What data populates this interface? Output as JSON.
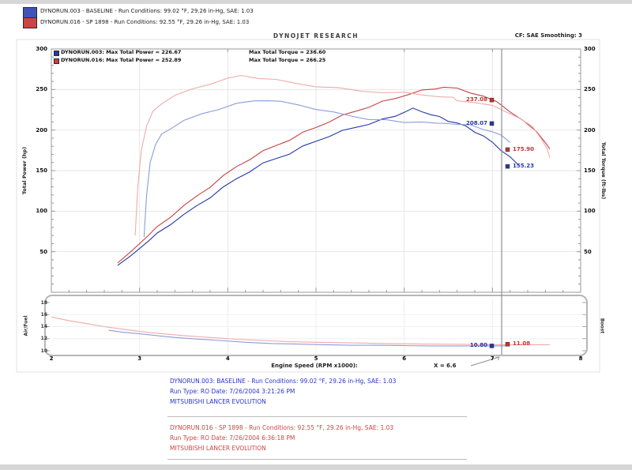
{
  "page": {
    "title": "DYNOJET RESEARCH",
    "cf_smoothing": "CF: SAE  Smoothing: 3",
    "header_legend": {
      "run1": {
        "label": "DYNORUN.003 - BASELINE  -  Run Conditions: 99.02 °F, 29.26 in-Hg, SAE: 1.03",
        "swatch_color": "#4054b8"
      },
      "run2": {
        "label": "DYNORUN.016 - SP 1898  -  Run Conditions: 92.55 °F, 29.26 in-Hg, SAE: 1.03",
        "swatch_color": "#cc4444"
      }
    }
  },
  "colors": {
    "run1_power": "#2438a8",
    "run1_torque": "#8c9cdb",
    "run2_power": "#c64242",
    "run2_torque": "#efaaaa",
    "footer_blue": "#2a35c8",
    "footer_red": "#d04343",
    "cursor": "#8f8f8f"
  },
  "chart_data": {
    "type": "line",
    "title": "DYNOJET RESEARCH",
    "inplot_legend": {
      "row1": {
        "swatch": "#2438a8",
        "power": "DYNORUN.003: Max Total Power = 226.67",
        "torque": "Max Total Torque = 236.60"
      },
      "row2": {
        "swatch": "#c64242",
        "power": "DYNORUN.016: Max Total Power = 252.89",
        "torque": "Max Total Torque = 266.25"
      }
    },
    "x_axis": {
      "label": "Engine Speed (RPM x1000):",
      "ticks": [
        2,
        3,
        4,
        5,
        6,
        7,
        8
      ],
      "range": [
        2,
        8
      ]
    },
    "cursor": {
      "x_label": "X = 6.6"
    },
    "main_panel": {
      "left_axis": {
        "label": "Total Power (hp)",
        "ticks": [
          50,
          100,
          150,
          200,
          250,
          300
        ],
        "range": [
          0,
          300
        ]
      },
      "right_axis": {
        "label": "Total Torque (ft-lbs)",
        "ticks": [
          50,
          100,
          150,
          200,
          250,
          300
        ],
        "range": [
          0,
          300
        ]
      },
      "grid": true,
      "series": [
        {
          "name": "run1-total-power",
          "legend": "DYNORUN.003 Total Power",
          "color": "#2438a8",
          "points": [
            [
              2.75,
              33
            ],
            [
              2.9,
              45
            ],
            [
              3.0,
              54
            ],
            [
              3.1,
              63
            ],
            [
              3.2,
              72
            ],
            [
              3.35,
              85
            ],
            [
              3.5,
              96
            ],
            [
              3.65,
              107
            ],
            [
              3.8,
              118
            ],
            [
              3.95,
              129
            ],
            [
              4.1,
              139
            ],
            [
              4.25,
              149
            ],
            [
              4.4,
              158
            ],
            [
              4.55,
              165
            ],
            [
              4.7,
              172
            ],
            [
              4.85,
              180
            ],
            [
              5.0,
              187
            ],
            [
              5.15,
              193
            ],
            [
              5.3,
              198
            ],
            [
              5.45,
              203
            ],
            [
              5.6,
              207
            ],
            [
              5.75,
              212
            ],
            [
              5.9,
              218
            ],
            [
              6.0,
              223
            ],
            [
              6.1,
              226.7
            ],
            [
              6.2,
              224
            ],
            [
              6.3,
              219
            ],
            [
              6.4,
              215
            ],
            [
              6.5,
              211
            ],
            [
              6.6,
              208
            ],
            [
              6.7,
              204
            ],
            [
              6.8,
              199
            ],
            [
              6.9,
              193
            ],
            [
              7.0,
              185
            ],
            [
              7.1,
              176
            ],
            [
              7.2,
              166
            ],
            [
              7.3,
              155.2
            ]
          ]
        },
        {
          "name": "run2-total-power",
          "legend": "DYNORUN.016 Total Power",
          "color": "#c64242",
          "points": [
            [
              2.75,
              36
            ],
            [
              2.9,
              50
            ],
            [
              3.0,
              60
            ],
            [
              3.1,
              70
            ],
            [
              3.2,
              80
            ],
            [
              3.35,
              94
            ],
            [
              3.5,
              107
            ],
            [
              3.65,
              119
            ],
            [
              3.8,
              131
            ],
            [
              3.95,
              143
            ],
            [
              4.1,
              154
            ],
            [
              4.25,
              164
            ],
            [
              4.4,
              173
            ],
            [
              4.55,
              181
            ],
            [
              4.7,
              189
            ],
            [
              4.85,
              197
            ],
            [
              5.0,
              204
            ],
            [
              5.15,
              211
            ],
            [
              5.3,
              217
            ],
            [
              5.45,
              223
            ],
            [
              5.6,
              228
            ],
            [
              5.75,
              234
            ],
            [
              5.9,
              240
            ],
            [
              6.05,
              245
            ],
            [
              6.2,
              249
            ],
            [
              6.35,
              252
            ],
            [
              6.45,
              252.9
            ],
            [
              6.6,
              250
            ],
            [
              6.75,
              246
            ],
            [
              6.9,
              241
            ],
            [
              7.05,
              234
            ],
            [
              7.2,
              224
            ],
            [
              7.35,
              212
            ],
            [
              7.5,
              198
            ],
            [
              7.6,
              186
            ],
            [
              7.65,
              175.9
            ]
          ]
        },
        {
          "name": "run1-total-torque",
          "legend": "DYNORUN.003 Total Torque",
          "color": "#8c9cdb",
          "points": [
            [
              3.05,
              68
            ],
            [
              3.08,
              120
            ],
            [
              3.12,
              160
            ],
            [
              3.18,
              182
            ],
            [
              3.25,
              194
            ],
            [
              3.35,
              203
            ],
            [
              3.5,
              212
            ],
            [
              3.7,
              220
            ],
            [
              3.9,
              227
            ],
            [
              4.1,
              232
            ],
            [
              4.3,
              235
            ],
            [
              4.45,
              236.6
            ],
            [
              4.6,
              234
            ],
            [
              4.8,
              231
            ],
            [
              5.0,
              227
            ],
            [
              5.2,
              222
            ],
            [
              5.4,
              218
            ],
            [
              5.6,
              214
            ],
            [
              5.8,
              211
            ],
            [
              6.0,
              209
            ],
            [
              6.2,
              210
            ],
            [
              6.35,
              207
            ],
            [
              6.5,
              209
            ],
            [
              6.6,
              208.1
            ],
            [
              6.75,
              206
            ],
            [
              6.9,
              202
            ],
            [
              7.0,
              198
            ],
            [
              7.1,
              192
            ],
            [
              7.2,
              185
            ]
          ]
        },
        {
          "name": "run2-total-torque",
          "legend": "DYNORUN.016 Total Torque",
          "color": "#efaaaa",
          "points": [
            [
              2.95,
              70
            ],
            [
              2.98,
              130
            ],
            [
              3.02,
              175
            ],
            [
              3.08,
              205
            ],
            [
              3.15,
              222
            ],
            [
              3.25,
              234
            ],
            [
              3.4,
              243
            ],
            [
              3.6,
              251
            ],
            [
              3.8,
              258
            ],
            [
              4.0,
              263
            ],
            [
              4.15,
              266.3
            ],
            [
              4.35,
              264
            ],
            [
              4.55,
              261
            ],
            [
              4.75,
              258
            ],
            [
              5.0,
              255
            ],
            [
              5.25,
              252
            ],
            [
              5.5,
              249
            ],
            [
              5.75,
              247
            ],
            [
              6.0,
              245
            ],
            [
              6.2,
              243
            ],
            [
              6.4,
              241
            ],
            [
              6.55,
              239
            ],
            [
              6.6,
              237.1
            ],
            [
              6.8,
              235
            ],
            [
              7.0,
              230
            ],
            [
              7.15,
              224
            ],
            [
              7.3,
              215
            ],
            [
              7.45,
              203
            ],
            [
              7.55,
              190
            ],
            [
              7.62,
              176
            ],
            [
              7.65,
              165
            ]
          ]
        }
      ],
      "cursor_labels": [
        {
          "text": "237.08",
          "side": "left",
          "color": "#c03232"
        },
        {
          "text": "208.07",
          "side": "left",
          "color": "#2438a8"
        },
        {
          "text": "175.90",
          "side": "right",
          "color": "#c03232"
        },
        {
          "text": "155.23",
          "side": "right",
          "color": "#2438a8"
        }
      ]
    },
    "af_panel": {
      "left_axis": {
        "label": "Air/Fuel",
        "ticks": [
          10,
          12,
          14,
          16,
          18
        ],
        "range": [
          10,
          18
        ]
      },
      "right_axis": {
        "label": "Boost"
      },
      "series": [
        {
          "name": "run1-air-fuel",
          "legend": "DYNORUN.003 Air/Fuel",
          "color": "#8c9cdb",
          "points": [
            [
              2.65,
              13.4
            ],
            [
              2.8,
              13.1
            ],
            [
              3.0,
              12.8
            ],
            [
              3.2,
              12.5
            ],
            [
              3.4,
              12.2
            ],
            [
              3.6,
              12.0
            ],
            [
              3.9,
              11.7
            ],
            [
              4.2,
              11.4
            ],
            [
              4.5,
              11.2
            ],
            [
              4.8,
              11.1
            ],
            [
              5.1,
              11.0
            ],
            [
              5.4,
              10.9
            ],
            [
              5.7,
              10.9
            ],
            [
              6.0,
              10.85
            ],
            [
              6.3,
              10.8
            ],
            [
              6.6,
              10.8
            ],
            [
              6.9,
              10.8
            ],
            [
              7.2,
              10.8
            ]
          ]
        },
        {
          "name": "run2-air-fuel",
          "legend": "DYNORUN.016 Air/Fuel",
          "color": "#efaaaa",
          "points": [
            [
              2.0,
              15.6
            ],
            [
              2.2,
              15.0
            ],
            [
              2.4,
              14.5
            ],
            [
              2.6,
              14.0
            ],
            [
              2.8,
              13.6
            ],
            [
              3.0,
              13.2
            ],
            [
              3.2,
              12.9
            ],
            [
              3.5,
              12.5
            ],
            [
              3.8,
              12.2
            ],
            [
              4.1,
              11.9
            ],
            [
              4.4,
              11.7
            ],
            [
              4.7,
              11.5
            ],
            [
              5.0,
              11.4
            ],
            [
              5.4,
              11.3
            ],
            [
              5.8,
              11.2
            ],
            [
              6.2,
              11.1
            ],
            [
              6.6,
              11.08
            ],
            [
              7.0,
              11.0
            ],
            [
              7.3,
              11.0
            ],
            [
              7.65,
              11.0
            ]
          ]
        }
      ],
      "cursor_labels": [
        {
          "text": "10.80",
          "side": "left",
          "color": "#2438a8"
        },
        {
          "text": "11.08",
          "side": "right",
          "color": "#c03232"
        }
      ]
    }
  },
  "footer": {
    "run1": {
      "lines": [
        "DYNORUN.003: BASELINE  -  Run Conditions: 99.02 °F, 29.26 in-Hg, SAE: 1.03",
        "Run Type: RO  Date: 7/26/2004 3:21:26 PM",
        "MITSUBISHI LANCER EVOLUTION"
      ]
    },
    "run2": {
      "lines": [
        "DYNORUN.016 - SP 1898  -  Run Conditions: 92.55 °F, 29.26 in-Hg, SAE: 1.03",
        "Run Type: RO  Date: 7/26/2004 6:36:18 PM",
        "MITSUBISHI LANCER EVOLUTION"
      ]
    }
  }
}
